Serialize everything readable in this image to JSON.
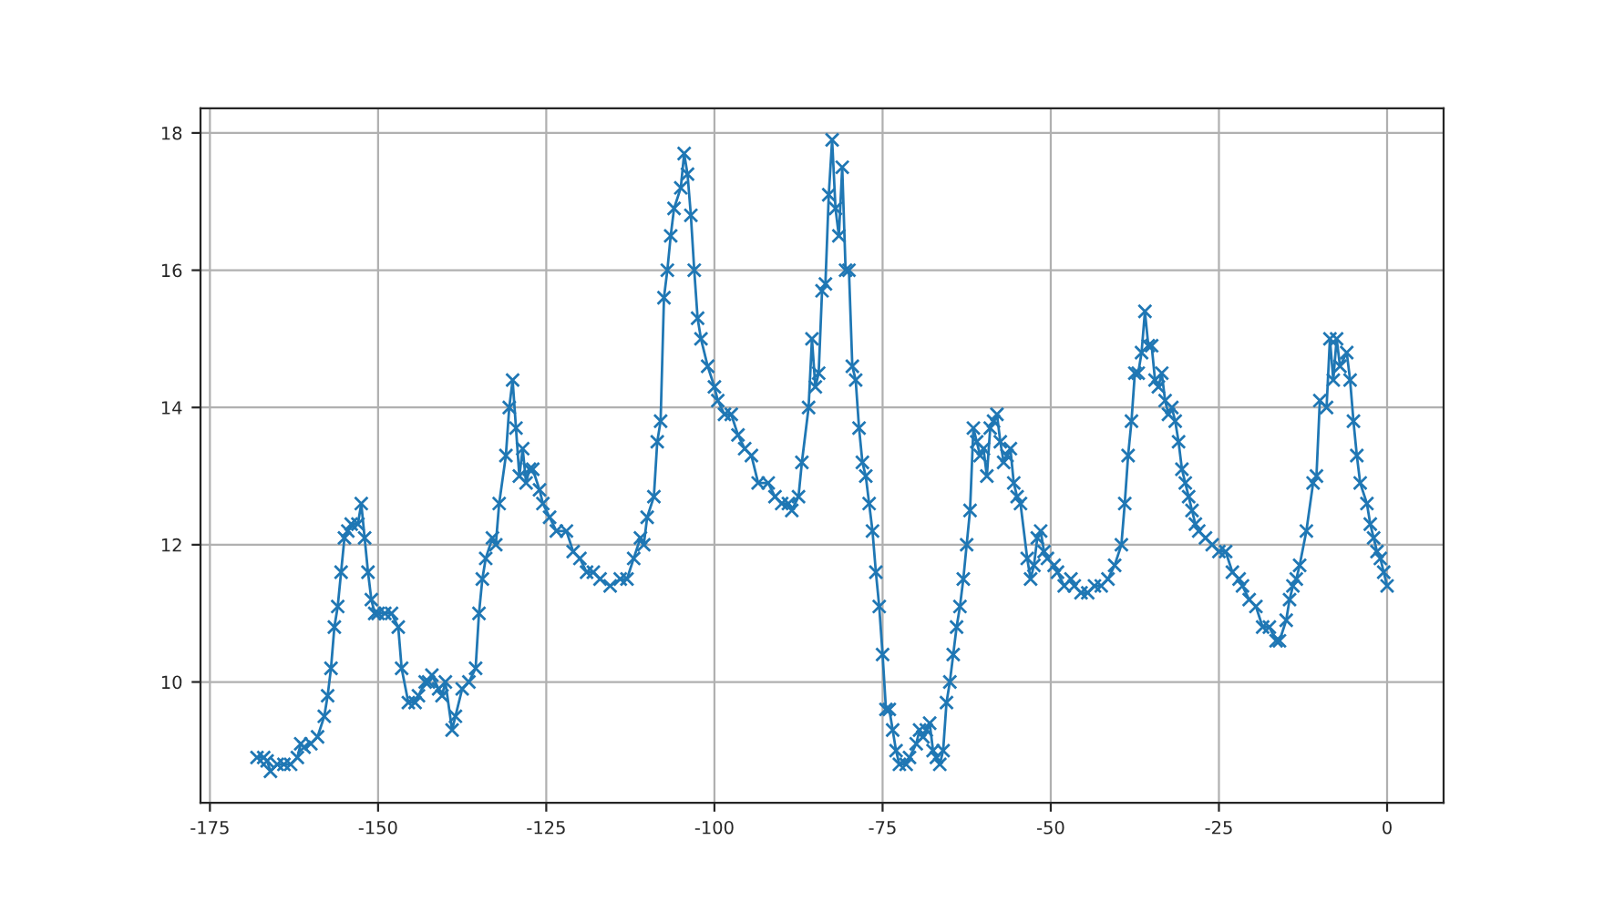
{
  "chart_data": {
    "type": "line",
    "marker": "cross",
    "line_style": "solid",
    "grid": true,
    "xlim": [
      -176.4,
      8.4
    ],
    "ylim": [
      8.24,
      18.36
    ],
    "xticks": [
      -175,
      -150,
      -125,
      -100,
      -75,
      -50,
      -25,
      0
    ],
    "yticks": [
      10,
      12,
      14,
      16,
      18
    ],
    "series": [
      {
        "color": "#1f77b4",
        "x": [
          -168,
          -167,
          -166.5,
          -166,
          -165,
          -164,
          -163,
          -162,
          -161.5,
          -161,
          -160,
          -159,
          -158,
          -157.5,
          -157,
          -156.5,
          -156,
          -155.5,
          -155,
          -154.5,
          -154,
          -153,
          -152.5,
          -152,
          -151.5,
          -151,
          -150.5,
          -150,
          -149,
          -148,
          -147,
          -146.5,
          -145.5,
          -144.5,
          -144,
          -143,
          -142.5,
          -142,
          -141,
          -140.5,
          -140,
          -139,
          -138.5,
          -137.5,
          -136.5,
          -135.5,
          -135,
          -134.5,
          -134,
          -133,
          -132.5,
          -132,
          -131,
          -130.5,
          -130,
          -129.5,
          -129,
          -128.5,
          -128,
          -127.5,
          -127,
          -126,
          -125.5,
          -124.5,
          -123.5,
          -122,
          -121,
          -120,
          -119,
          -118,
          -117,
          -115.5,
          -114,
          -113,
          -112,
          -111,
          -110.5,
          -110,
          -109,
          -108.5,
          -108,
          -107.5,
          -107,
          -106.5,
          -106,
          -105,
          -104.5,
          -104,
          -103.5,
          -103,
          -102.5,
          -102,
          -101,
          -100,
          -99.5,
          -98.5,
          -97.5,
          -96.5,
          -95.5,
          -94.5,
          -93.5,
          -92,
          -91,
          -90,
          -89,
          -88.5,
          -87.5,
          -87,
          -86,
          -85.5,
          -85,
          -84.5,
          -84,
          -83.5,
          -83,
          -82.5,
          -82,
          -81.5,
          -81,
          -80.5,
          -80,
          -79.5,
          -79,
          -78.5,
          -78,
          -77.5,
          -77,
          -76.5,
          -76,
          -75.5,
          -75,
          -74.5,
          -74,
          -73.5,
          -73,
          -72.5,
          -71.5,
          -71,
          -70,
          -69.5,
          -69,
          -68.5,
          -68,
          -67.5,
          -67,
          -66.5,
          -66,
          -65.5,
          -65,
          -64.5,
          -64,
          -63.5,
          -63,
          -62.5,
          -62,
          -61.5,
          -61,
          -60.5,
          -60,
          -59.5,
          -59,
          -58.5,
          -58,
          -57.5,
          -57,
          -56.5,
          -56,
          -55.5,
          -55,
          -54.5,
          -53.5,
          -53,
          -52.5,
          -52,
          -51.5,
          -51,
          -50.5,
          -49.5,
          -49,
          -48,
          -47,
          -46.5,
          -45.5,
          -44.5,
          -43.5,
          -42.5,
          -41.5,
          -40.5,
          -39.5,
          -39,
          -38.5,
          -38,
          -37.5,
          -37,
          -36.5,
          -36,
          -35.5,
          -35,
          -34.5,
          -34,
          -33.5,
          -33,
          -32.5,
          -32,
          -31.5,
          -31,
          -30.5,
          -30,
          -29.5,
          -29,
          -28.5,
          -28,
          -27,
          -26,
          -25,
          -24,
          -23,
          -22,
          -21.5,
          -20.5,
          -19.5,
          -18.5,
          -17.5,
          -16.5,
          -16,
          -15,
          -14.5,
          -14,
          -13.5,
          -13,
          -12,
          -11,
          -10.5,
          -10,
          -9,
          -8.5,
          -8,
          -7.5,
          -7,
          -6,
          -5.5,
          -5,
          -4.5,
          -4,
          -3,
          -2.5,
          -2,
          -1.5,
          -1,
          -0.5,
          0
        ],
        "values": [
          8.9,
          8.9,
          8.85,
          8.7,
          8.8,
          8.8,
          8.8,
          8.9,
          9.1,
          9.05,
          9.1,
          9.2,
          9.5,
          9.8,
          10.2,
          10.8,
          11.1,
          11.6,
          12.1,
          12.2,
          12.3,
          12.3,
          12.6,
          12.1,
          11.6,
          11.2,
          11.0,
          11.0,
          11.0,
          11.0,
          10.8,
          10.2,
          9.7,
          9.7,
          9.8,
          10.0,
          10.0,
          10.1,
          9.9,
          9.8,
          10.0,
          9.3,
          9.5,
          9.9,
          10.0,
          10.2,
          11.0,
          11.5,
          11.8,
          12.1,
          12.0,
          12.6,
          13.3,
          14.0,
          14.4,
          13.7,
          13.0,
          13.4,
          12.9,
          13.1,
          13.1,
          12.8,
          12.6,
          12.4,
          12.2,
          12.2,
          11.9,
          11.8,
          11.6,
          11.6,
          11.5,
          11.4,
          11.5,
          11.5,
          11.8,
          12.1,
          12.0,
          12.4,
          12.7,
          13.5,
          13.8,
          15.6,
          16.0,
          16.5,
          16.9,
          17.2,
          17.7,
          17.4,
          16.8,
          16.0,
          15.3,
          15.0,
          14.6,
          14.3,
          14.1,
          13.9,
          13.9,
          13.6,
          13.4,
          13.3,
          12.9,
          12.9,
          12.7,
          12.6,
          12.6,
          12.5,
          12.7,
          13.2,
          14.0,
          15.0,
          14.3,
          14.5,
          15.7,
          15.8,
          17.1,
          17.9,
          16.9,
          16.5,
          17.5,
          16.0,
          16.0,
          14.6,
          14.4,
          13.7,
          13.2,
          13.0,
          12.6,
          12.2,
          11.6,
          11.1,
          10.4,
          9.6,
          9.6,
          9.3,
          9.0,
          8.8,
          8.8,
          8.9,
          9.1,
          9.3,
          9.2,
          9.3,
          9.4,
          9.0,
          8.9,
          8.8,
          9.0,
          9.7,
          10.0,
          10.4,
          10.8,
          11.1,
          11.5,
          12.0,
          12.5,
          13.7,
          13.5,
          13.3,
          13.4,
          13.0,
          13.7,
          13.8,
          13.9,
          13.5,
          13.2,
          13.3,
          13.4,
          12.9,
          12.7,
          12.6,
          11.8,
          11.5,
          11.7,
          12.1,
          12.2,
          11.9,
          11.8,
          11.7,
          11.6,
          11.4,
          11.5,
          11.4,
          11.3,
          11.3,
          11.4,
          11.4,
          11.5,
          11.7,
          12.0,
          12.6,
          13.3,
          13.8,
          14.5,
          14.5,
          14.8,
          15.4,
          14.9,
          14.9,
          14.4,
          14.3,
          14.5,
          14.1,
          13.9,
          14.0,
          13.8,
          13.5,
          13.1,
          12.9,
          12.7,
          12.5,
          12.3,
          12.2,
          12.1,
          12.0,
          11.9,
          11.9,
          11.6,
          11.5,
          11.4,
          11.2,
          11.1,
          10.8,
          10.8,
          10.6,
          10.6,
          10.9,
          11.2,
          11.4,
          11.5,
          11.7,
          12.2,
          12.9,
          13.0,
          14.1,
          14.0,
          15.0,
          14.4,
          15.0,
          14.6,
          14.8,
          14.4,
          13.8,
          13.3,
          12.9,
          12.6,
          12.3,
          12.1,
          11.9,
          11.8,
          11.6,
          11.4
        ]
      }
    ]
  }
}
